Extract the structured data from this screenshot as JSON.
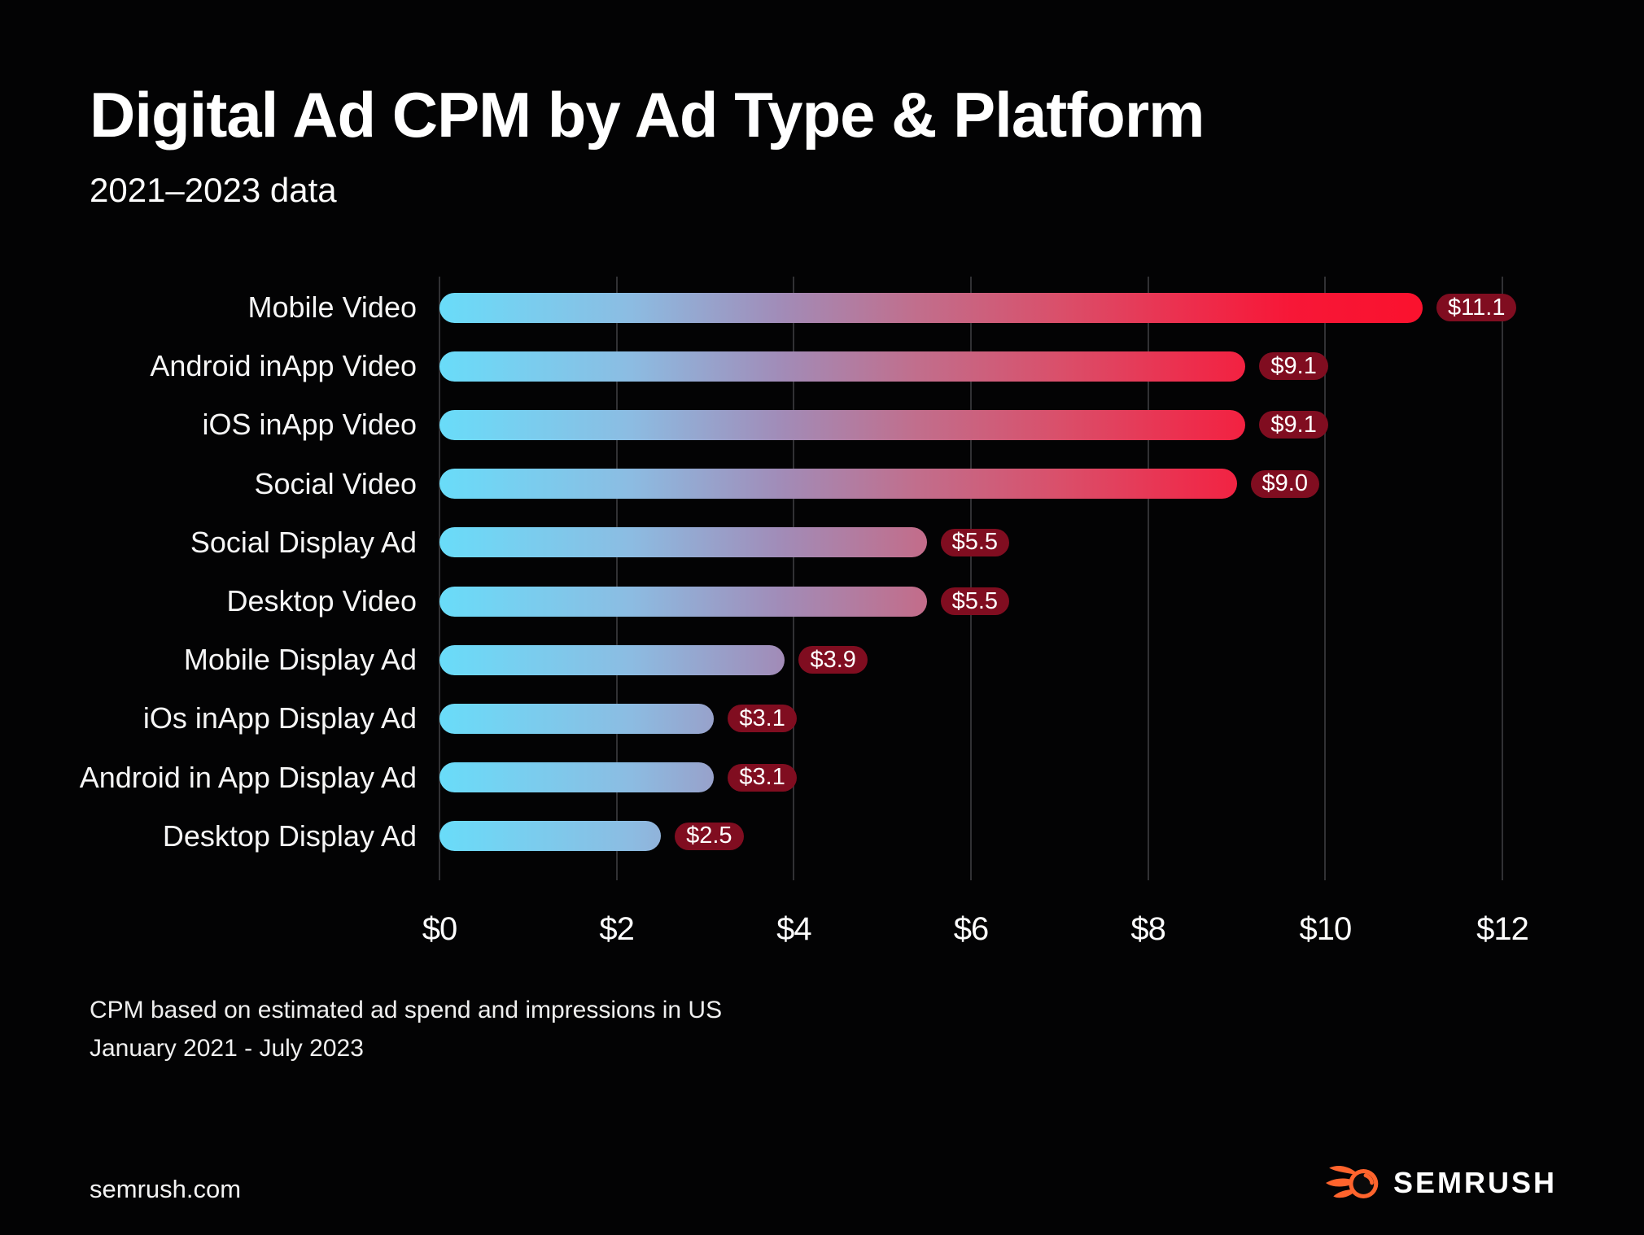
{
  "title": "Digital Ad CPM by Ad Type & Platform",
  "subtitle": "2021–2023 data",
  "chart_data": {
    "type": "bar",
    "orientation": "horizontal",
    "title": "Digital Ad CPM by Ad Type & Platform",
    "subtitle": "2021–2023 data",
    "categories": [
      "Mobile Video",
      "Android inApp Video",
      "iOS inApp Video",
      "Social Video",
      "Social Display Ad",
      "Desktop Video",
      "Mobile Display Ad",
      "iOs inApp Display Ad",
      "Android in App Display Ad",
      "Desktop Display Ad"
    ],
    "values": [
      11.1,
      9.1,
      9.1,
      9.0,
      5.5,
      5.5,
      3.9,
      3.1,
      3.1,
      2.5
    ],
    "value_labels": [
      "$11.1",
      "$9.1",
      "$9.1",
      "$9.0",
      "$5.5",
      "$5.5",
      "$3.9",
      "$3.1",
      "$3.1",
      "$2.5"
    ],
    "x_ticks": [
      "$0",
      "$2",
      "$4",
      "$6",
      "$8",
      "$10",
      "$12"
    ],
    "xlim": [
      0,
      12
    ],
    "xlabel": "",
    "ylabel": "",
    "grid": "vertical-only",
    "legend": "none",
    "bar_gradient": [
      "#69DCF9",
      "#8CBCE2",
      "#A18CB8",
      "#C16E8C",
      "#D9506B",
      "#EC2F4E",
      "#F71737",
      "#FC0E28"
    ],
    "gradient_scale": "fixed-to-axis-width",
    "value_pill_color": "#800D20",
    "gridline_color": "#313134",
    "background_color": "#030304"
  },
  "footnotes": {
    "line1": "CPM based on estimated ad spend and impressions in US",
    "line2": "January 2021 - July 2023"
  },
  "footer": {
    "site": "semrush.com",
    "brand": "SEMRUSH"
  },
  "colors": {
    "background": "#030304",
    "text": "#FFFFFF",
    "gridline": "#313134",
    "pill": "#800D20",
    "brand_orange": "#FF642D"
  }
}
